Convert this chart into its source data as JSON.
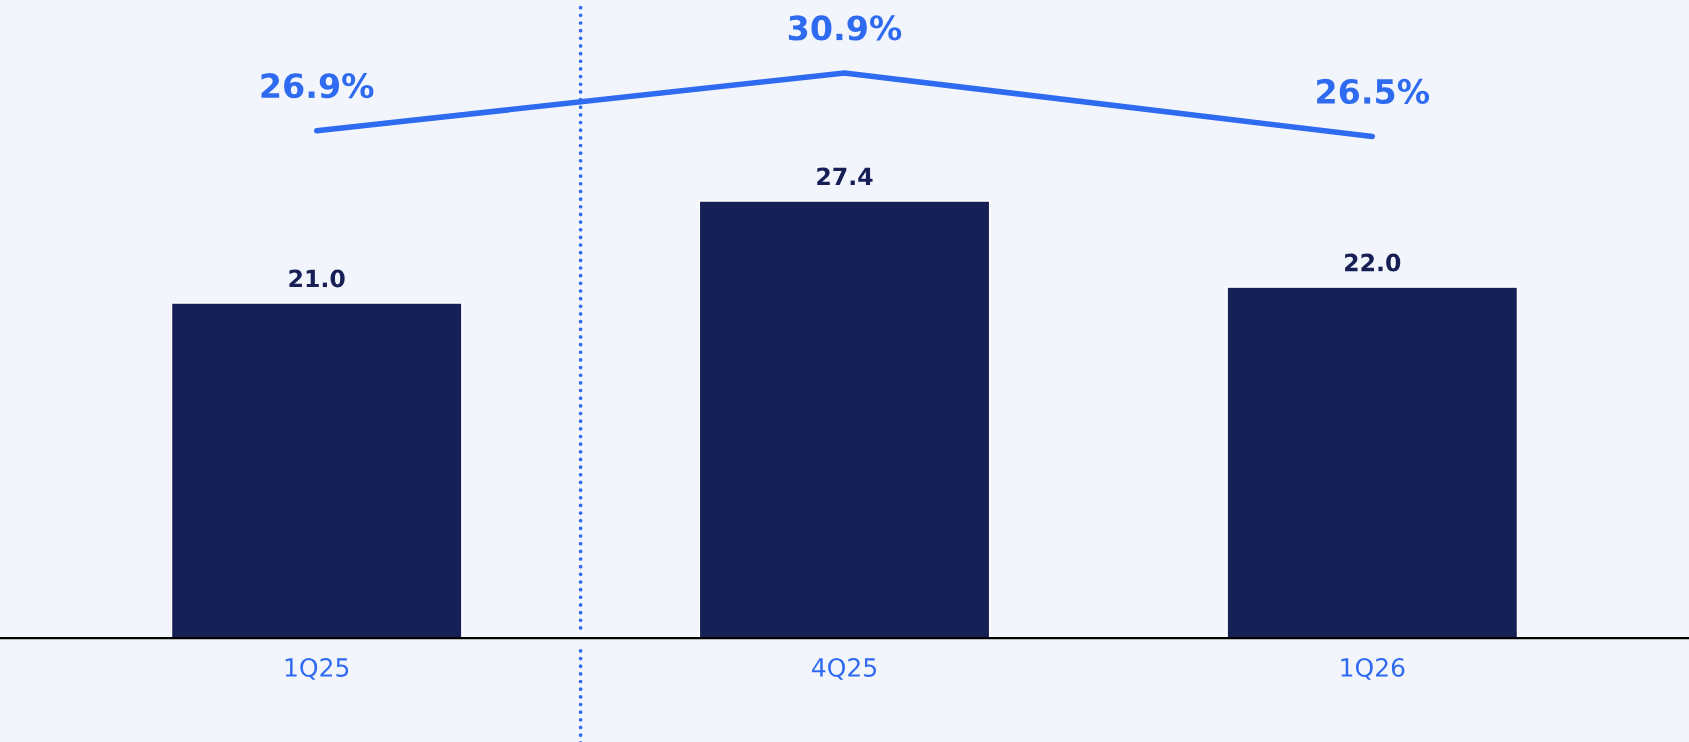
{
  "chart_data": {
    "type": "bar",
    "categories": [
      "1Q25",
      "4Q25",
      "1Q26"
    ],
    "series": [
      {
        "color": "#162056",
        "values": [
          21.0,
          27.4,
          22.0
        ],
        "value_labels": [
          "21.0",
          "27.4",
          "22.0"
        ]
      },
      {
        "type": "line",
        "axis": "y2",
        "color": "#2f6bf0",
        "values": [
          26.9,
          30.9,
          26.5
        ],
        "value_labels": [
          "26.9%",
          "30.9%",
          "26.5%"
        ]
      }
    ],
    "ylim": [
      0,
      40
    ],
    "tick_labels": "x",
    "legend": false
  }
}
